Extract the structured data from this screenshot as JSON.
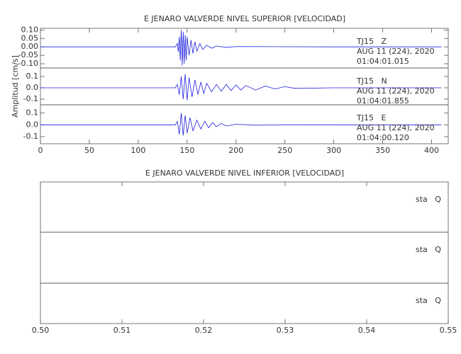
{
  "chart_data": [
    {
      "type": "line",
      "title": "E JENARO VALVERDE NIVEL SUPERIOR [VELOCIDAD]",
      "y_label": "Amplitud [cm/s]",
      "xlim": [
        0,
        417
      ],
      "xticks": [
        0,
        50,
        100,
        150,
        200,
        250,
        300,
        350,
        400
      ],
      "panels": [
        {
          "label_lines": [
            "TJ15   Z",
            "AUG 11 (224), 2020",
            "01:04:01.015"
          ],
          "ylim": [
            -0.125,
            0.11
          ],
          "yticks": [
            {
              "value": 0.1,
              "label": "0.10"
            },
            0.05,
            {
              "value": 0,
              "label": "0.00"
            },
            -0.05,
            {
              "value": -0.1,
              "label": "-0.10"
            }
          ],
          "series": [
            {
              "color": "#1f1fe0",
              "x": [
                0,
                50,
                100,
                138,
                140,
                141,
                142,
                143,
                144,
                145,
                146,
                147,
                148,
                149,
                150,
                152,
                154,
                156,
                158,
                160,
                163,
                166,
                170,
                175,
                180,
                190,
                200,
                250,
                300,
                350,
                410
              ],
              "values": [
                0,
                0,
                0,
                0,
                0.02,
                -0.03,
                0.06,
                -0.08,
                0.1,
                -0.11,
                0.09,
                -0.1,
                0.07,
                -0.08,
                0.06,
                -0.05,
                0.04,
                -0.04,
                0.03,
                -0.025,
                0.02,
                -0.015,
                0.01,
                -0.008,
                0.005,
                -0.003,
                0.002,
                0.001,
                0,
                0,
                0
              ]
            }
          ]
        },
        {
          "label_lines": [
            "TJ15   N",
            "AUG 11 (224), 2020",
            "01:04:01.855"
          ],
          "ylim": [
            -0.15,
            0.175
          ],
          "yticks": [
            0.1,
            {
              "value": 0,
              "label": "0.0"
            },
            -0.1
          ],
          "series": [
            {
              "color": "#1f1fe0",
              "x": [
                0,
                100,
                138,
                140,
                142,
                144,
                146,
                148,
                150,
                152,
                155,
                158,
                161,
                164,
                167,
                170,
                175,
                180,
                185,
                190,
                195,
                200,
                205,
                210,
                220,
                230,
                240,
                250,
                260,
                300,
                350,
                410
              ],
              "values": [
                0,
                0,
                0,
                0.03,
                -0.06,
                0.1,
                -0.1,
                0.12,
                -0.11,
                0.09,
                -0.08,
                0.07,
                -0.06,
                0.05,
                -0.05,
                0.04,
                -0.035,
                0.03,
                -0.03,
                0.03,
                -0.025,
                0.025,
                -0.02,
                0.02,
                -0.02,
                0.015,
                -0.01,
                0.01,
                -0.005,
                0,
                0,
                0
              ]
            }
          ]
        },
        {
          "label_lines": [
            "TJ15   E",
            "AUG 11 (224), 2020",
            "01:04:00.120"
          ],
          "ylim": [
            -0.16,
            0.17
          ],
          "yticks": [
            0.1,
            {
              "value": 0,
              "label": "0.0"
            },
            -0.1
          ],
          "series": [
            {
              "color": "#1f1fe0",
              "x": [
                0,
                100,
                138,
                140,
                142,
                144,
                146,
                148,
                150,
                153,
                156,
                160,
                164,
                168,
                172,
                176,
                180,
                185,
                190,
                200,
                220,
                250,
                300,
                410
              ],
              "values": [
                0,
                0,
                0,
                0.03,
                -0.08,
                0.1,
                -0.09,
                0.08,
                -0.07,
                0.06,
                -0.05,
                0.04,
                -0.035,
                0.03,
                -0.025,
                0.02,
                -0.015,
                0.012,
                -0.01,
                0.005,
                -0.003,
                0.001,
                0,
                0
              ]
            }
          ]
        }
      ]
    },
    {
      "type": "line",
      "title": "E JENARO VALVERDE NIVEL INFERIOR [VELOCIDAD]",
      "xlim": [
        0.5,
        0.55
      ],
      "xticks": [
        {
          "value": 0.5,
          "label": "0.50"
        },
        0.51,
        0.52,
        0.53,
        0.54,
        0.55
      ],
      "panels": [
        {
          "label_lines": [
            "sta   Q"
          ],
          "series": []
        },
        {
          "label_lines": [
            "sta   Q"
          ],
          "series": []
        },
        {
          "label_lines": [
            "sta   Q"
          ],
          "series": []
        }
      ]
    }
  ]
}
